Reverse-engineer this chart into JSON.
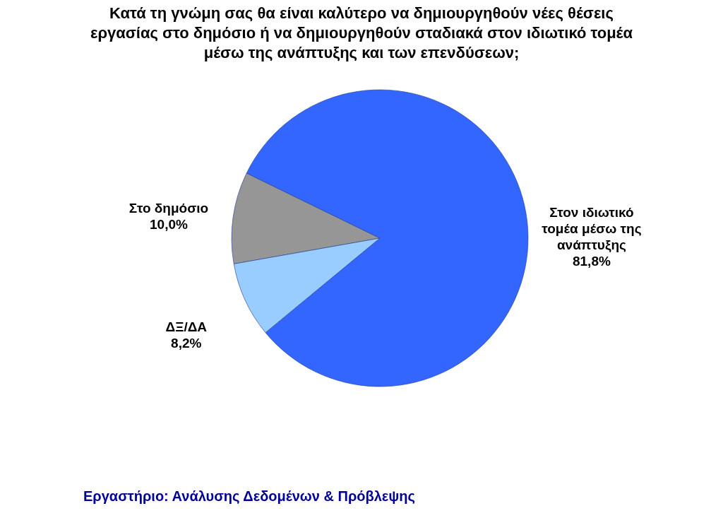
{
  "chart_data": {
    "type": "pie",
    "title": "Κατά τη γνώμη σας θα είναι καλύτερο να δημιουργηθούν νέες θέσεις εργασίας στο δημόσιο ή να δημιουργηθούν σταδιακά στον ιδιωτικό τομέα μέσω της ανάπτυξης και των επενδύσεων;",
    "categories": [
      "Στο δημόσιο",
      "Στον ιδιωτικό τομέα μέσω της ανάπτυξης",
      "ΔΞ/ΔΑ"
    ],
    "values": [
      10.0,
      81.8,
      8.2
    ],
    "colors": [
      "#969696",
      "#3366ff",
      "#99ccff"
    ],
    "value_labels": [
      "10,0%",
      "81,8%",
      "8,2%"
    ],
    "annotations": [
      "Εργαστήριο: Ανάλυσης Δεδομένων & Πρόβλεψης"
    ]
  }
}
